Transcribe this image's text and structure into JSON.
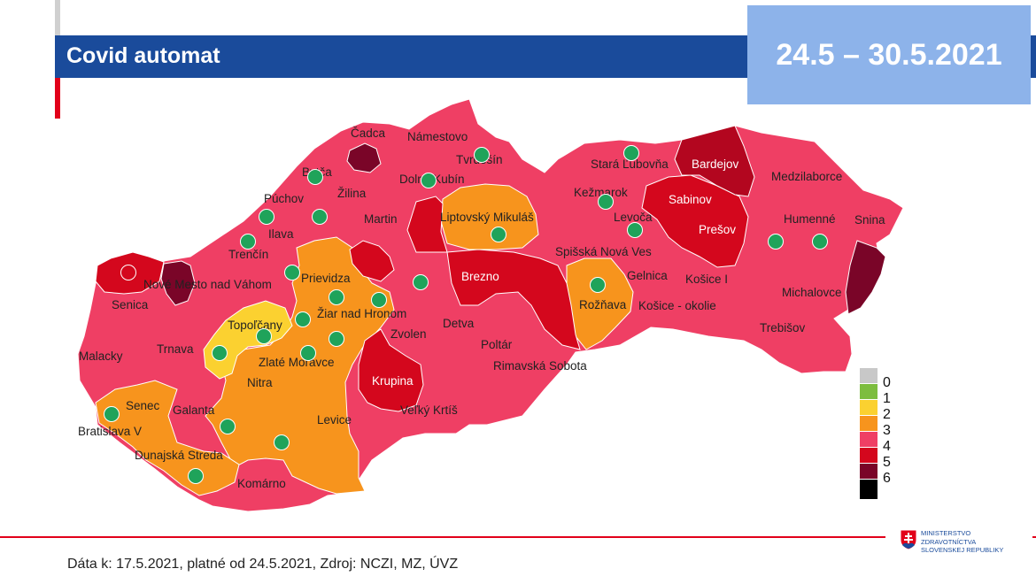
{
  "header": {
    "title": "Covid automat"
  },
  "date_range": "24.5 – 30.5.2021",
  "districts": [
    {
      "name": "Čadca",
      "level": 4
    },
    {
      "name": "Námestovo",
      "level": 4
    },
    {
      "name": "Tvrdošín",
      "level": 4
    },
    {
      "name": "Bytča",
      "level": 4
    },
    {
      "name": "Žilina",
      "level": 4
    },
    {
      "name": "Dolný Kubín",
      "level": 4
    },
    {
      "name": "Púchov",
      "level": 4
    },
    {
      "name": "Martin",
      "level": 4
    },
    {
      "name": "Liptovský Mikuláš",
      "level": 3
    },
    {
      "name": "Ilava",
      "level": 4
    },
    {
      "name": "Trenčín",
      "level": 4
    },
    {
      "name": "Nové Mesto nad Váhom",
      "level": 5
    },
    {
      "name": "Prievidza",
      "level": 3
    },
    {
      "name": "Senica",
      "level": 4
    },
    {
      "name": "Žiar nad Hronom",
      "level": 3
    },
    {
      "name": "Topoľčany",
      "level": 2
    },
    {
      "name": "Zvolen",
      "level": 4
    },
    {
      "name": "Detva",
      "level": 4
    },
    {
      "name": "Brezno",
      "level": 5
    },
    {
      "name": "Poltár",
      "level": 4
    },
    {
      "name": "Malacky",
      "level": 4
    },
    {
      "name": "Trnava",
      "level": 4
    },
    {
      "name": "Zlaté Moravce",
      "level": 3
    },
    {
      "name": "Nitra",
      "level": 3
    },
    {
      "name": "Krupina",
      "level": 5
    },
    {
      "name": "Rimavská Sobota",
      "level": 4
    },
    {
      "name": "Veľký Krtíš",
      "level": 4
    },
    {
      "name": "Senec",
      "level": 3
    },
    {
      "name": "Galanta",
      "level": 4
    },
    {
      "name": "Levice",
      "level": 3
    },
    {
      "name": "Bratislava V",
      "level": 3
    },
    {
      "name": "Dunajská Streda",
      "level": 3
    },
    {
      "name": "Komárno",
      "level": 4
    },
    {
      "name": "Stará Ľubovňa",
      "level": 4
    },
    {
      "name": "Bardejov",
      "level": 6
    },
    {
      "name": "Kežmarok",
      "level": 4
    },
    {
      "name": "Sabinov",
      "level": 5
    },
    {
      "name": "Levoča",
      "level": 4
    },
    {
      "name": "Prešov",
      "level": 5
    },
    {
      "name": "Spišská Nová Ves",
      "level": 4
    },
    {
      "name": "Medzilaborce",
      "level": 4
    },
    {
      "name": "Humenné",
      "level": 4
    },
    {
      "name": "Snina",
      "level": 4
    },
    {
      "name": "Gelnica",
      "level": 4
    },
    {
      "name": "Košice I",
      "level": 4
    },
    {
      "name": "Rožňava",
      "level": 3
    },
    {
      "name": "Košice - okolie",
      "level": 4
    },
    {
      "name": "Michalovce",
      "level": 4
    },
    {
      "name": "Trebišov",
      "level": 4
    }
  ],
  "legend": [
    {
      "label": "0",
      "color": "#c8c8c8"
    },
    {
      "label": "1",
      "color": "#7dbd3f"
    },
    {
      "label": "2",
      "color": "#fbd130"
    },
    {
      "label": "3",
      "color": "#f7941d"
    },
    {
      "label": "4",
      "color": "#ef3f64"
    },
    {
      "label": "5",
      "color": "#d4071d"
    },
    {
      "label": "6",
      "color": "#7a0528"
    },
    {
      "label": "",
      "color": "#000000"
    }
  ],
  "footer": {
    "source": "Dáta k: 17.5.2021, platné od 24.5.2021, Zdroj: NCZI, MZ, ÚVZ"
  },
  "ministry": {
    "line1": "MINISTERSTVO",
    "line2": "ZDRAVOTNÍCTVA",
    "line3": "SLOVENSKEJ REPUBLIKY"
  }
}
